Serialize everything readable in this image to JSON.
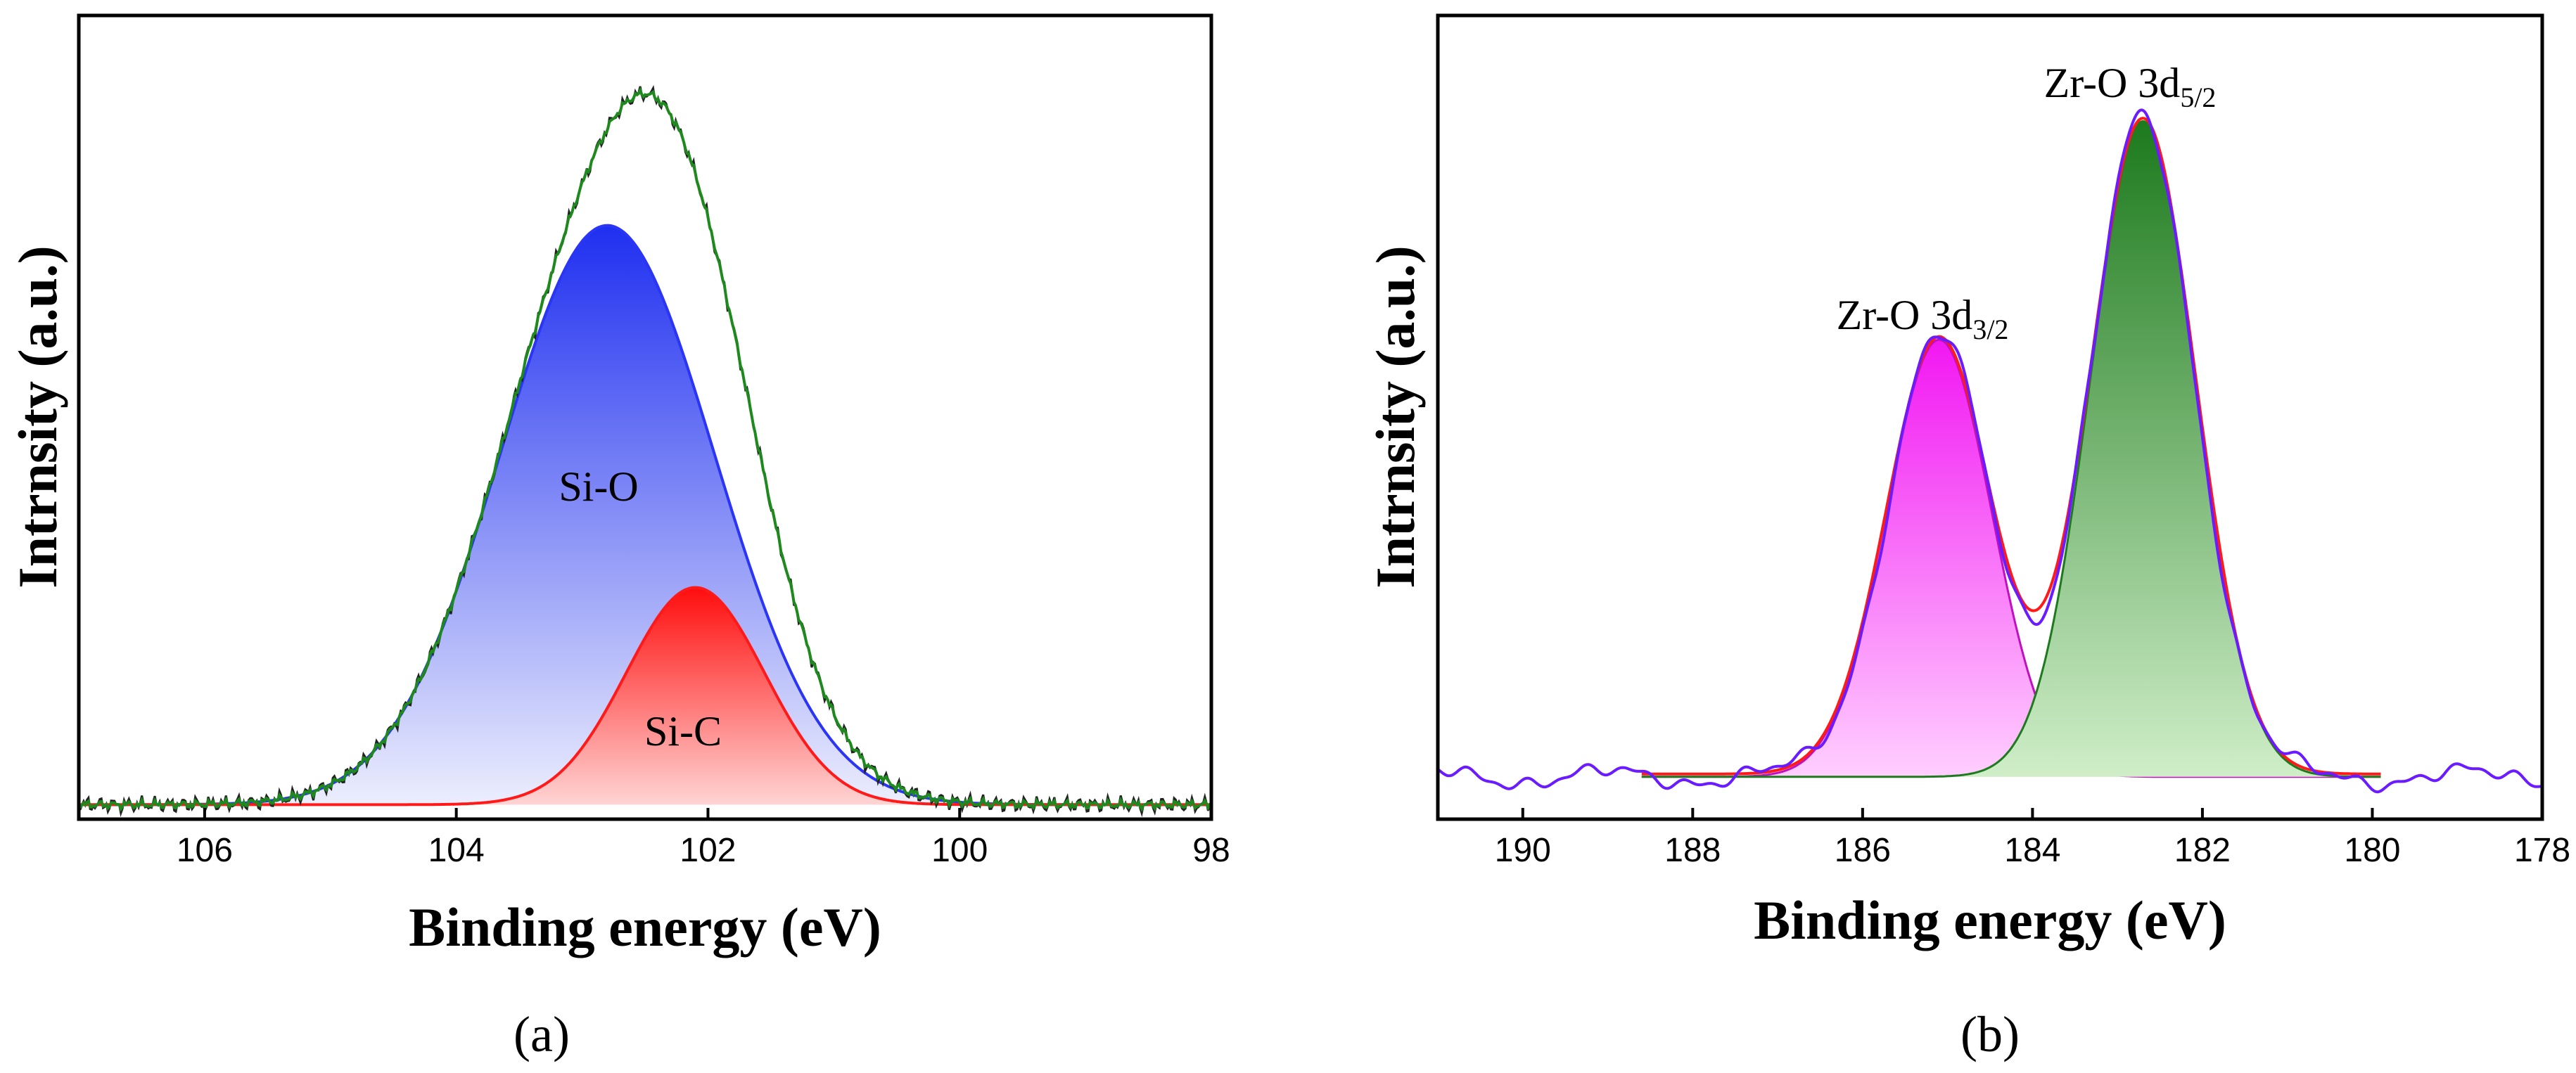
{
  "colors": {
    "si_o_fill_top": "#1f2ff0",
    "si_o_fill_bottom": "#e8eafd",
    "si_o_line": "#2a35f5",
    "si_c_fill_top": "#ff1010",
    "si_c_fill_bottom": "#ffd0d0",
    "envelope_a": "#1e8a1e",
    "raw_a": "#222222",
    "zr_d32_fill_top": "#f21cf2",
    "zr_d32_fill_bottom": "#ffc8ff",
    "zr_d52_fill_top": "#1f7a1f",
    "zr_d52_fill_bottom": "#c8ecc0",
    "envelope_b": "#6a1bff",
    "fit_b": "#ff1a1a"
  },
  "chart_data": [
    {
      "type": "area",
      "panel_label": "(a)",
      "title": "",
      "xlabel": "Binding energy (eV)",
      "ylabel": "Intrnsity (a.u.)",
      "xlim": [
        107,
        98
      ],
      "ylim": [
        0,
        1.0
      ],
      "xticks": [
        106,
        104,
        102,
        100,
        98
      ],
      "tick_labels": [
        "106",
        "104",
        "102",
        "100",
        "98"
      ],
      "grid": false,
      "series": [
        {
          "name": "Si-O",
          "center": 102.8,
          "amplitude": 0.8,
          "sigma": 0.85
        },
        {
          "name": "Si-C",
          "center": 102.1,
          "amplitude": 0.3,
          "sigma": 0.55
        },
        {
          "name": "Envelope",
          "center_range": [
            98,
            107
          ],
          "peak_x": 102.5,
          "peak_y": 1.0
        }
      ],
      "annotations": [
        {
          "text": "Si-O",
          "x": 103.0,
          "y": 0.47
        },
        {
          "text": "Si-C",
          "x": 101.6,
          "y": 0.12
        }
      ]
    },
    {
      "type": "area",
      "panel_label": "(b)",
      "title": "",
      "xlabel": "Binding energy (eV)",
      "ylabel": "Intrnsity (a.u.)",
      "xlim": [
        191,
        178
      ],
      "ylim": [
        -0.05,
        1.05
      ],
      "xticks": [
        190,
        188,
        186,
        184,
        182,
        180,
        178
      ],
      "tick_labels": [
        "190",
        "188",
        "186",
        "184",
        "182",
        "180",
        "178"
      ],
      "grid": false,
      "series": [
        {
          "name": "Zr-O 3d3/2",
          "center": 185.1,
          "amplitude": 0.62,
          "sigma": 0.62
        },
        {
          "name": "Zr-O 3d5/2",
          "center": 182.7,
          "amplitude": 0.93,
          "sigma": 0.62
        },
        {
          "name": "Envelope",
          "baseline": 0.02
        }
      ],
      "annotations": [
        {
          "text": "Zr-O 3d",
          "sub": "3/2",
          "x": 185.1,
          "y": 0.72
        },
        {
          "text": "Zr-O 3d",
          "sub": "5/2",
          "x": 182.7,
          "y": 1.02
        }
      ]
    }
  ]
}
